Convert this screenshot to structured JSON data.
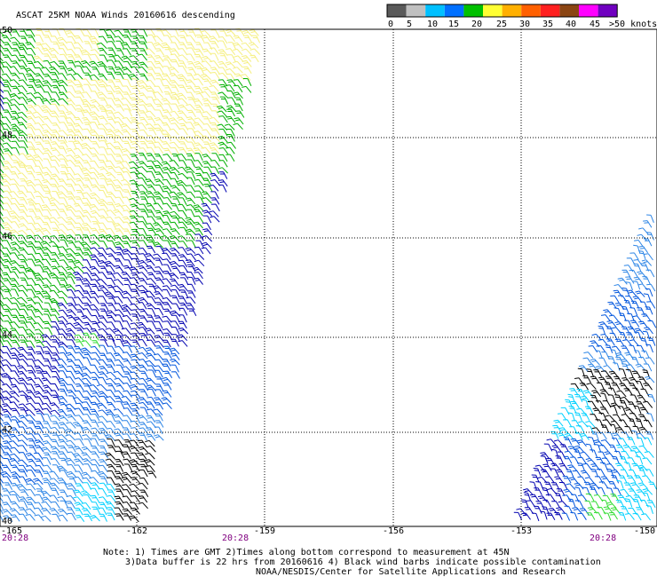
{
  "title": "ASCAT 25KM NOAA Winds 20160616 descending",
  "legend": {
    "labels": [
      "0",
      "5",
      "10",
      "15",
      "20",
      "25",
      "30",
      "35",
      "40",
      "45",
      ">50 knots"
    ],
    "colors": [
      "#5a5a5a",
      "#c0c0c0",
      "#00c0ff",
      "#0070ff",
      "#00c000",
      "#ffff33",
      "#ffb000",
      "#ff6000",
      "#ff2020",
      "#8b4513",
      "#ff00ff",
      "#7000c0"
    ]
  },
  "lat_labels": [
    "50",
    "48",
    "46",
    "44",
    "42",
    "40"
  ],
  "lon_labels": [
    "-165",
    "-162",
    "-159",
    "-156",
    "-153",
    "-150"
  ],
  "time_labels": [
    "20:28",
    "20:28",
    "20:28"
  ],
  "notes": {
    "line1": "Note: 1) Times are GMT 2)Times along bottom correspond to measurement at 45N",
    "line2": "3)Data buffer is 22 hrs from 20160616 4) Black wind barbs indicate possible contamination",
    "line3": "NOAA/NESDIS/Center for Satellite Applications and Research"
  },
  "wind_colors": {
    "yellow": "#f5ef80",
    "green": "#00b000",
    "light_green": "#33dd33",
    "dark_blue": "#0000b0",
    "blue": "#0055dd",
    "mid_blue": "#2e86e6",
    "cyan": "#00d0ff",
    "black": "#000000"
  }
}
